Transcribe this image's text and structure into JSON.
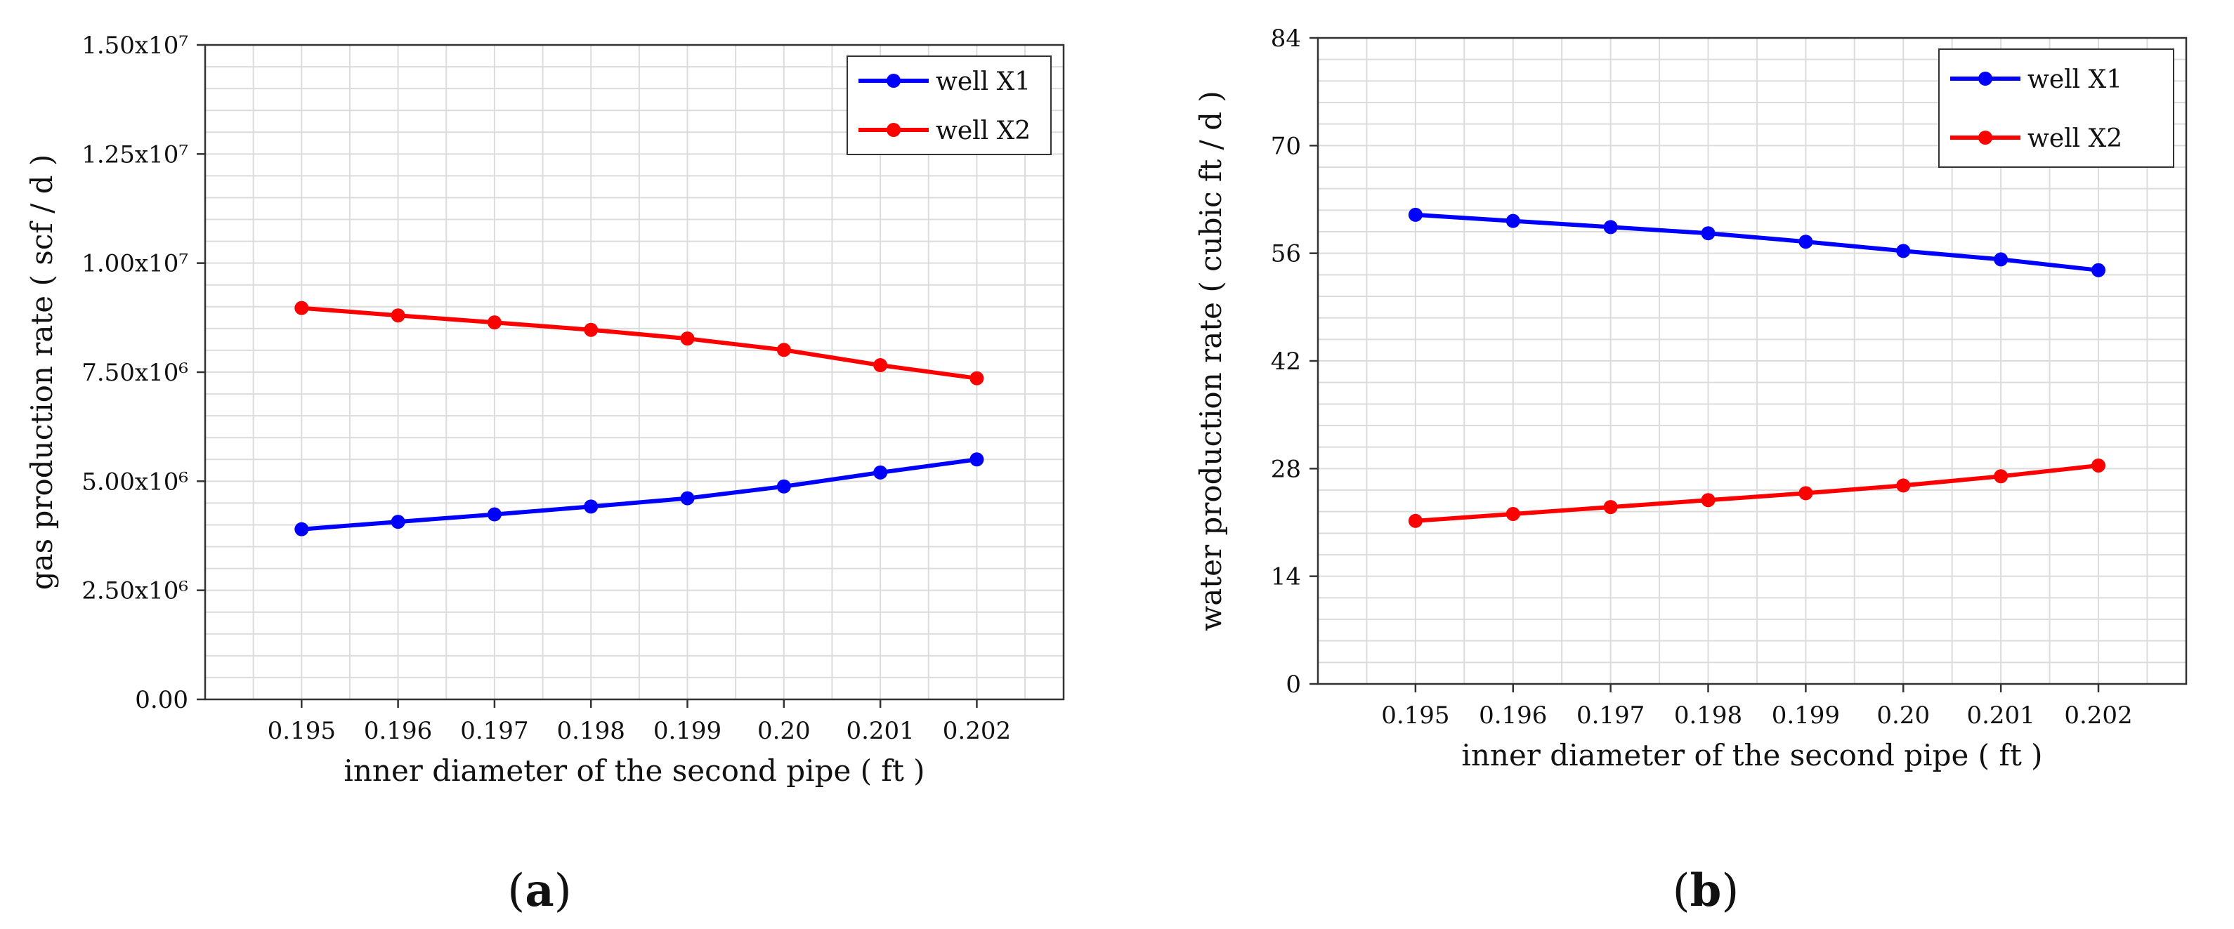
{
  "chart_data": [
    {
      "type": "line",
      "panel_label_parts": [
        "(",
        "a",
        ")"
      ],
      "title": "",
      "xlabel": "inner diameter of the second pipe ( ft )",
      "ylabel": "gas production rate ( scf / d )",
      "xlim": [
        0.194,
        0.2029
      ],
      "ylim": [
        0,
        15000000
      ],
      "x_ticks": [
        0.195,
        0.196,
        0.197,
        0.198,
        0.199,
        0.2,
        0.201,
        0.202
      ],
      "x_tick_labels": [
        "0.195",
        "0.196",
        "0.197",
        "0.198",
        "0.199",
        "0.20",
        "0.201",
        "0.202"
      ],
      "y_ticks": [
        0,
        2500000,
        5000000,
        7500000,
        10000000,
        12500000,
        15000000
      ],
      "y_tick_labels": [
        "0.00",
        "2.50x10⁶",
        "5.00x10⁶",
        "7.50x10⁶",
        "1.00x10⁷",
        "1.25x10⁷",
        "1.50x10⁷"
      ],
      "grid": true,
      "legend_position": "top-right",
      "series": [
        {
          "name": "well X1",
          "color": "#0000ff",
          "x": [
            0.195,
            0.196,
            0.197,
            0.198,
            0.199,
            0.2,
            0.201,
            0.202
          ],
          "y": [
            3900000,
            4070000,
            4240000,
            4420000,
            4610000,
            4880000,
            5200000,
            5500000
          ]
        },
        {
          "name": "well X2",
          "color": "#ff0000",
          "x": [
            0.195,
            0.196,
            0.197,
            0.198,
            0.199,
            0.2,
            0.201,
            0.202
          ],
          "y": [
            8970000,
            8800000,
            8640000,
            8470000,
            8270000,
            8010000,
            7660000,
            7360000
          ]
        }
      ]
    },
    {
      "type": "line",
      "panel_label_parts": [
        "(",
        "b",
        ")"
      ],
      "title": "",
      "xlabel": "inner diameter of the second pipe ( ft )",
      "ylabel": "water production rate ( cubic ft / d )",
      "xlim": [
        0.194,
        0.2029
      ],
      "ylim": [
        0,
        84
      ],
      "x_ticks": [
        0.195,
        0.196,
        0.197,
        0.198,
        0.199,
        0.2,
        0.201,
        0.202
      ],
      "x_tick_labels": [
        "0.195",
        "0.196",
        "0.197",
        "0.198",
        "0.199",
        "0.20",
        "0.201",
        "0.202"
      ],
      "y_ticks": [
        0,
        14,
        28,
        42,
        56,
        70,
        84
      ],
      "y_tick_labels": [
        "0",
        "14",
        "28",
        "42",
        "56",
        "70",
        "84"
      ],
      "grid": true,
      "legend_position": "top-right",
      "series": [
        {
          "name": "well X1",
          "color": "#0000ff",
          "x": [
            0.195,
            0.196,
            0.197,
            0.198,
            0.199,
            0.2,
            0.201,
            0.202
          ],
          "y": [
            61.0,
            60.2,
            59.4,
            58.6,
            57.5,
            56.3,
            55.2,
            53.8
          ]
        },
        {
          "name": "well X2",
          "color": "#ff0000",
          "x": [
            0.195,
            0.196,
            0.197,
            0.198,
            0.199,
            0.2,
            0.201,
            0.202
          ],
          "y": [
            21.2,
            22.1,
            23.0,
            23.9,
            24.8,
            25.8,
            27.0,
            28.4
          ]
        }
      ]
    }
  ]
}
